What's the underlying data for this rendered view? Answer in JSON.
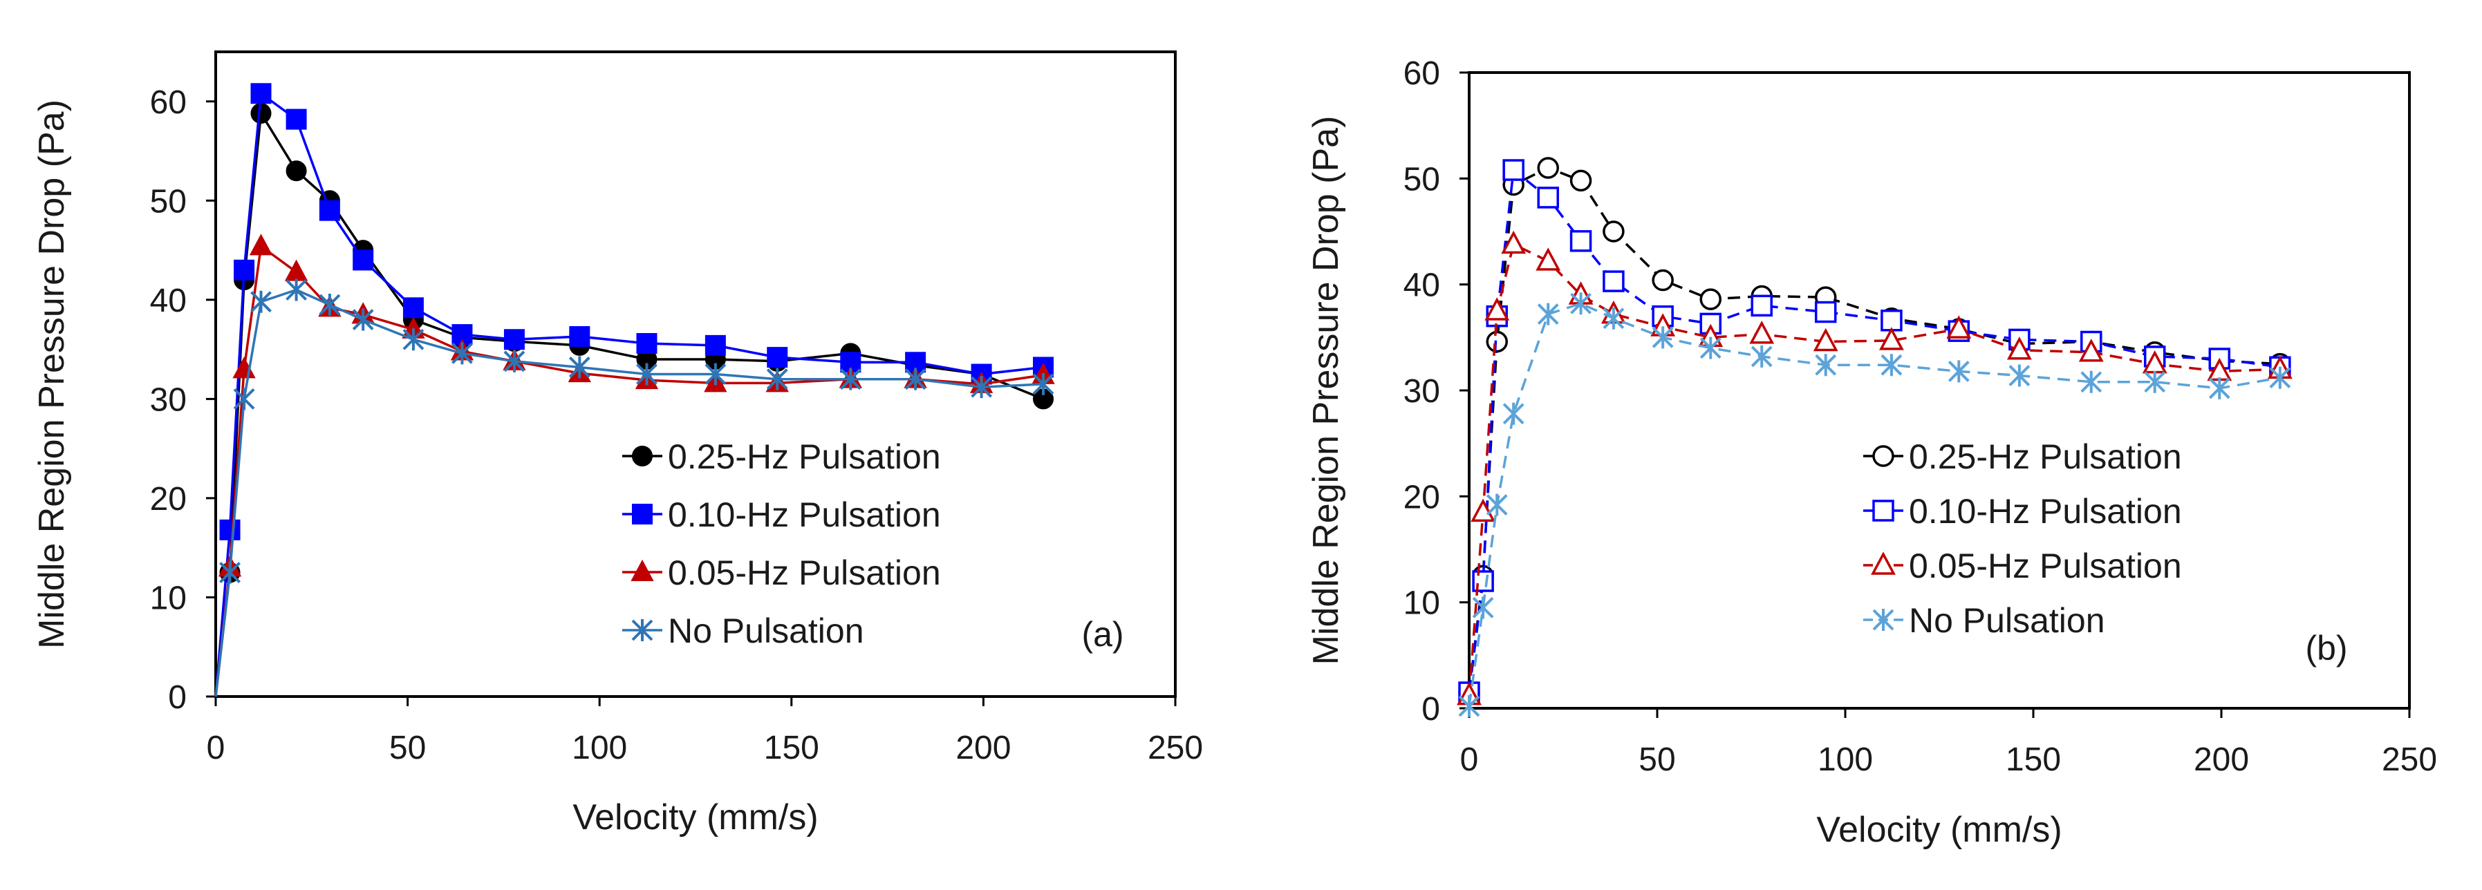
{
  "chart_data": [
    {
      "id": "a",
      "type": "line",
      "panel_label": "(a)",
      "title": "",
      "xlabel": "Velocity (mm/s)",
      "ylabel": "Middle Region Pressure Drop (Pa)",
      "xlim": [
        0,
        250
      ],
      "ylim": [
        0,
        65
      ],
      "xticks": [
        0,
        50,
        100,
        150,
        200,
        250
      ],
      "yticks": [
        0,
        10,
        20,
        30,
        40,
        50,
        60
      ],
      "grid": false,
      "legend_position": "center-right",
      "series": [
        {
          "name": "0.25-Hz Pulsation",
          "color": "#000000",
          "marker": "filled-circle",
          "line_style": "solid",
          "x": [
            0,
            3.7,
            7.4,
            11.8,
            21,
            29.7,
            38.4,
            51.5,
            64.2,
            77.8,
            94.8,
            112.3,
            130.2,
            146.3,
            165.4,
            182.3,
            199.5,
            215.6
          ],
          "y": [
            0,
            12.5,
            42.0,
            58.8,
            53.0,
            50.0,
            45.0,
            38.0,
            36.2,
            35.8,
            35.4,
            34.0,
            34.0,
            33.8,
            34.6,
            33.4,
            32.5,
            30.0
          ]
        },
        {
          "name": "0.10-Hz Pulsation",
          "color": "#0000ff",
          "marker": "filled-square",
          "line_style": "solid",
          "x": [
            0,
            3.7,
            7.4,
            11.8,
            21,
            29.7,
            38.4,
            51.5,
            64.2,
            77.8,
            94.8,
            112.3,
            130.2,
            146.3,
            165.4,
            182.3,
            199.5,
            215.6
          ],
          "y": [
            0,
            16.8,
            43.0,
            60.8,
            58.2,
            49.0,
            44.0,
            39.2,
            36.5,
            36.0,
            36.3,
            35.6,
            35.4,
            34.2,
            33.7,
            33.7,
            32.5,
            33.2
          ]
        },
        {
          "name": "0.05-Hz Pulsation",
          "color": "#c00000",
          "marker": "filled-triangle",
          "line_style": "solid",
          "x": [
            0,
            3.7,
            7.4,
            11.8,
            21,
            29.7,
            38.4,
            51.5,
            64.2,
            77.8,
            94.8,
            112.3,
            130.2,
            146.3,
            165.4,
            182.3,
            199.5,
            215.6
          ],
          "y": [
            0,
            13.0,
            33.0,
            45.4,
            42.8,
            39.2,
            38.5,
            37.0,
            34.8,
            33.8,
            32.6,
            31.9,
            31.6,
            31.6,
            32.0,
            32.0,
            31.5,
            32.4
          ]
        },
        {
          "name": "No Pulsation",
          "color": "#2e75b6",
          "marker": "asterisk",
          "line_style": "solid",
          "x": [
            0,
            3.7,
            7.4,
            11.8,
            21,
            29.7,
            38.4,
            51.5,
            64.2,
            77.8,
            94.8,
            112.3,
            130.2,
            146.3,
            165.4,
            182.3,
            199.5,
            215.6
          ],
          "y": [
            0,
            12.5,
            30.0,
            39.8,
            41.0,
            39.5,
            38.0,
            36.0,
            34.6,
            33.8,
            33.2,
            32.5,
            32.5,
            32.0,
            32.0,
            32.0,
            31.2,
            31.5
          ]
        }
      ]
    },
    {
      "id": "b",
      "type": "line",
      "panel_label": "(b)",
      "title": "",
      "xlabel": "Velocity (mm/s)",
      "ylabel": "Middle Region Pressure Drop (Pa)",
      "xlim": [
        0,
        250
      ],
      "ylim": [
        0,
        60
      ],
      "xticks": [
        0,
        50,
        100,
        150,
        200,
        250
      ],
      "yticks": [
        0,
        10,
        20,
        30,
        40,
        50,
        60
      ],
      "grid": false,
      "legend_position": "center-right",
      "series": [
        {
          "name": "0.25-Hz Pulsation",
          "color": "#000000",
          "marker": "open-circle",
          "line_style": "dashed",
          "x": [
            0,
            3.7,
            7.4,
            11.8,
            21,
            29.7,
            38.4,
            51.5,
            64.2,
            77.8,
            94.8,
            112.3,
            130.2,
            146.3,
            165.4,
            182.3,
            199.5,
            215.6
          ],
          "y": [
            1.5,
            12.5,
            34.6,
            49.4,
            51.0,
            49.8,
            45.0,
            40.4,
            38.6,
            38.9,
            38.8,
            36.8,
            35.8,
            34.4,
            34.6,
            33.6,
            32.8,
            32.5
          ]
        },
        {
          "name": "0.10-Hz Pulsation",
          "color": "#0000ff",
          "marker": "open-square",
          "line_style": "dashed",
          "x": [
            0,
            3.7,
            7.4,
            11.8,
            21,
            29.7,
            38.4,
            51.5,
            64.2,
            77.8,
            94.8,
            112.3,
            130.2,
            146.3,
            165.4,
            182.3,
            199.5,
            215.6
          ],
          "y": [
            1.5,
            12.0,
            37.0,
            50.8,
            48.2,
            44.1,
            40.3,
            37.0,
            36.3,
            38.0,
            37.4,
            36.6,
            35.6,
            34.8,
            34.6,
            33.2,
            33.0,
            32.2
          ]
        },
        {
          "name": "0.05-Hz Pulsation",
          "color": "#c00000",
          "marker": "open-triangle",
          "line_style": "dashed",
          "x": [
            0,
            3.7,
            7.4,
            11.8,
            21,
            29.7,
            38.4,
            51.5,
            64.2,
            77.8,
            94.8,
            112.3,
            130.2,
            146.3,
            165.4,
            182.3,
            199.5,
            215.6
          ],
          "y": [
            1.2,
            18.5,
            37.5,
            43.8,
            42.2,
            39.0,
            37.2,
            36.0,
            35.0,
            35.3,
            34.6,
            34.7,
            35.8,
            33.8,
            33.6,
            32.5,
            31.8,
            32.0
          ]
        },
        {
          "name": "No Pulsation",
          "color": "#5ba3d9",
          "marker": "asterisk",
          "line_style": "dashed",
          "x": [
            0,
            3.7,
            7.4,
            11.8,
            21,
            29.7,
            38.4,
            51.5,
            64.2,
            77.8,
            94.8,
            112.3,
            130.2,
            146.3,
            165.4,
            182.3,
            199.5,
            215.6
          ],
          "y": [
            0.2,
            9.5,
            19.2,
            27.8,
            37.2,
            38.2,
            36.8,
            35.0,
            34.0,
            33.2,
            32.4,
            32.4,
            31.8,
            31.4,
            30.8,
            30.8,
            30.2,
            31.2
          ]
        }
      ]
    }
  ]
}
